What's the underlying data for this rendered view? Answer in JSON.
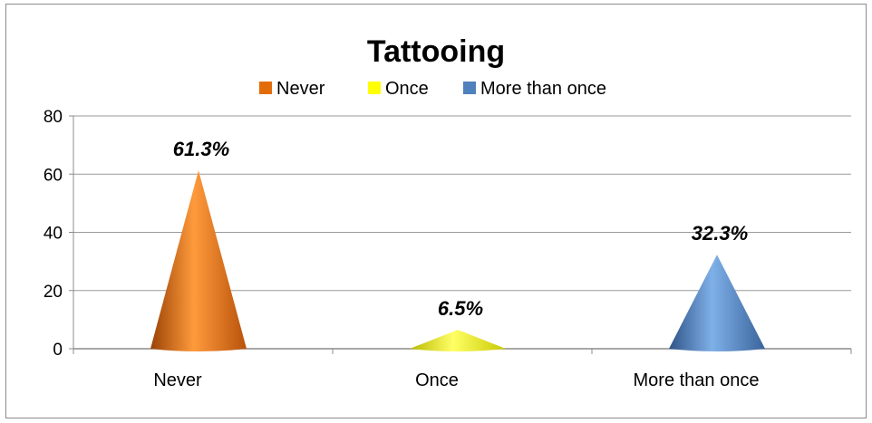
{
  "chart_data": {
    "type": "bar",
    "shape": "cone",
    "title": "Tattooing",
    "categories": [
      "Never",
      "Once",
      "More than once"
    ],
    "values": [
      61.3,
      6.5,
      32.3
    ],
    "data_labels": [
      "61.3%",
      "6.5%",
      "32.3%"
    ],
    "colors": [
      "#E36C0A",
      "#FFFF00",
      "#4F81BD"
    ],
    "legend": [
      "Never",
      "Once",
      "More than once"
    ],
    "legend_position": "top",
    "ylim": [
      0,
      80
    ],
    "yticks": [
      "0",
      "20",
      "40",
      "60",
      "80"
    ],
    "grid": true
  }
}
